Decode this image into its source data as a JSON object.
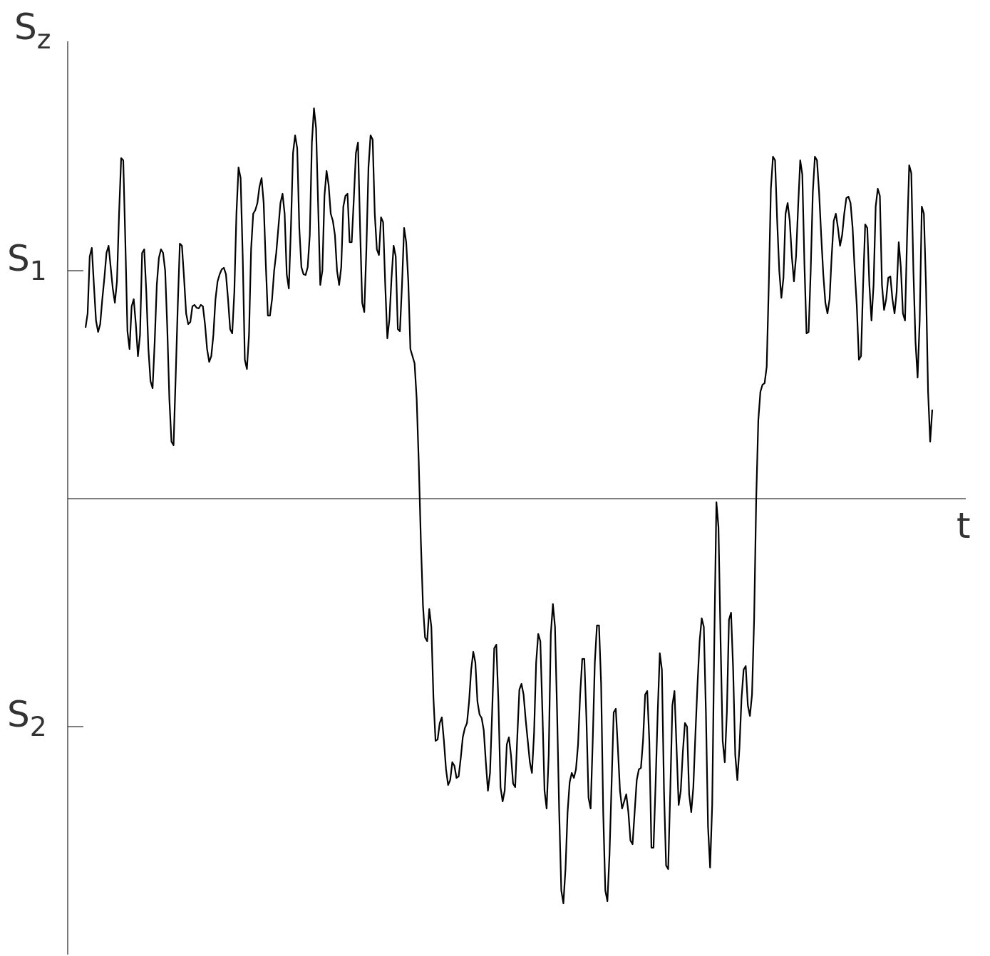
{
  "chart_data": {
    "type": "line",
    "y_label": "Sz",
    "x_label": "t",
    "ylim": [
      -640,
      640
    ],
    "yticks": [
      {
        "value": 320,
        "label": "S1"
      },
      {
        "value": -320,
        "label": "S2"
      }
    ],
    "grid": false,
    "series": [
      {
        "color": "#000000",
        "values": [
          240,
          260,
          340,
          352,
          300,
          250,
          234,
          245,
          280,
          310,
          345,
          355,
          325,
          295,
          275,
          305,
          400,
          478,
          475,
          360,
          235,
          210,
          270,
          280,
          245,
          200,
          230,
          345,
          350,
          290,
          210,
          165,
          155,
          220,
          300,
          338,
          350,
          345,
          320,
          240,
          140,
          80,
          75,
          170,
          270,
          358,
          355,
          310,
          260,
          245,
          248,
          270,
          272,
          268,
          267,
          272,
          270,
          245,
          210,
          192,
          200,
          230,
          280,
          305,
          315,
          322,
          324,
          315,
          280,
          238,
          232,
          290,
          400,
          465,
          450,
          340,
          195,
          182,
          230,
          350,
          400,
          405,
          415,
          438,
          450,
          415,
          330,
          257,
          257,
          280,
          320,
          345,
          380,
          415,
          428,
          400,
          315,
          295,
          380,
          485,
          510,
          492,
          380,
          325,
          315,
          314,
          325,
          370,
          500,
          548,
          520,
          410,
          300,
          320,
          425,
          460,
          440,
          400,
          390,
          370,
          320,
          300,
          325,
          410,
          425,
          428,
          360,
          360,
          420,
          485,
          500,
          380,
          275,
          262,
          350,
          465,
          510,
          504,
          400,
          350,
          342,
          395,
          388,
          300,
          225,
          252,
          310,
          355,
          340,
          238,
          235,
          300,
          380,
          360,
          305,
          210,
          200,
          190,
          140,
          50,
          -60,
          -150,
          -195,
          -200,
          -155,
          -180,
          -280,
          -340,
          -338,
          -315,
          -307,
          -340,
          -380,
          -402,
          -395,
          -370,
          -375,
          -392,
          -390,
          -365,
          -335,
          -322,
          -315,
          -285,
          -240,
          -215,
          -230,
          -285,
          -303,
          -308,
          -325,
          -370,
          -410,
          -385,
          -300,
          -210,
          -205,
          -285,
          -405,
          -425,
          -410,
          -345,
          -335,
          -360,
          -400,
          -405,
          -335,
          -268,
          -260,
          -275,
          -310,
          -340,
          -370,
          -385,
          -330,
          -230,
          -190,
          -200,
          -300,
          -410,
          -435,
          -360,
          -190,
          -148,
          -180,
          -300,
          -440,
          -550,
          -568,
          -520,
          -440,
          -398,
          -385,
          -392,
          -380,
          -345,
          -275,
          -225,
          -225,
          -310,
          -420,
          -435,
          -340,
          -230,
          -178,
          -178,
          -260,
          -440,
          -550,
          -565,
          -500,
          -400,
          -300,
          -295,
          -350,
          -410,
          -435,
          -425,
          -415,
          -440,
          -480,
          -485,
          -440,
          -395,
          -380,
          -378,
          -340,
          -275,
          -270,
          -340,
          -490,
          -490,
          -400,
          -300,
          -217,
          -240,
          -410,
          -515,
          -520,
          -410,
          -290,
          -270,
          -350,
          -430,
          -410,
          -355,
          -315,
          -320,
          -415,
          -440,
          -405,
          -330,
          -260,
          -200,
          -168,
          -180,
          -300,
          -460,
          -518,
          -430,
          -200,
          -5,
          -40,
          -200,
          -340,
          -370,
          -300,
          -170,
          -160,
          -240,
          -360,
          -395,
          -350,
          -280,
          -240,
          -235,
          -290,
          -305,
          -275,
          -170,
          0,
          110,
          150,
          160,
          162,
          185,
          300,
          435,
          480,
          475,
          390,
          320,
          282,
          310,
          400,
          415,
          390,
          340,
          305,
          340,
          410,
          475,
          455,
          330,
          232,
          234,
          320,
          430,
          480,
          475,
          430,
          370,
          315,
          275,
          260,
          280,
          340,
          390,
          400,
          380,
          355,
          370,
          400,
          422,
          424,
          415,
          380,
          320,
          270,
          195,
          200,
          300,
          385,
          380,
          300,
          250,
          300,
          410,
          435,
          425,
          300,
          265,
          280,
          310,
          312,
          280,
          260,
          290,
          360,
          325,
          260,
          250,
          370,
          468,
          457,
          320,
          220,
          170,
          250,
          410,
          400,
          300,
          150,
          80,
          125
        ]
      }
    ]
  }
}
